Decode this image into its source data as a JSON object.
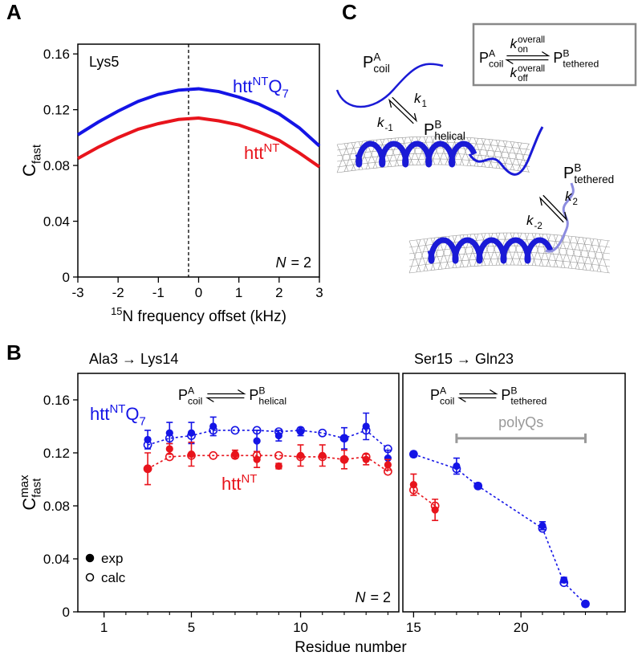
{
  "panel_labels": [
    "A",
    "B",
    "C"
  ],
  "chart_data": [
    {
      "type": "line",
      "ylabel": [
        {
          "text": "C"
        },
        {
          "sub": "fast"
        }
      ],
      "xlabel": [
        {
          "sup": "15"
        },
        {
          "text": "N frequency offset (kHz)"
        }
      ],
      "xlim": [
        -3,
        3
      ],
      "xticks": [
        -3,
        -2,
        -1,
        0,
        1,
        2,
        3
      ],
      "ylim": [
        0,
        0.167
      ],
      "yticks": [
        0,
        0.04,
        0.08,
        0.12,
        0.16
      ],
      "vline": -0.25,
      "annotations": [
        "Lys5"
      ],
      "note": [
        {
          "italic": "N"
        },
        {
          "text": " = 2"
        }
      ],
      "series": [
        {
          "name_parts": [
            {
              "text": "htt"
            },
            {
              "sup": "NT"
            },
            {
              "text": "Q"
            },
            {
              "sub": "7"
            }
          ],
          "color": "#1414e6",
          "x": [
            -3,
            -2.5,
            -2,
            -1.5,
            -1,
            -0.5,
            0,
            0.5,
            1,
            1.5,
            2,
            2.5,
            3
          ],
          "values": [
            0.102,
            0.111,
            0.119,
            0.126,
            0.131,
            0.134,
            0.135,
            0.133,
            0.129,
            0.124,
            0.117,
            0.107,
            0.094
          ]
        },
        {
          "name_parts": [
            {
              "text": "htt"
            },
            {
              "sup": "NT"
            }
          ],
          "color": "#e8141c",
          "x": [
            -3,
            -2.5,
            -2,
            -1.5,
            -1,
            -0.5,
            0,
            0.5,
            1,
            1.5,
            2,
            2.5,
            3
          ],
          "values": [
            0.085,
            0.093,
            0.1,
            0.106,
            0.11,
            0.113,
            0.114,
            0.112,
            0.109,
            0.104,
            0.098,
            0.089,
            0.079
          ]
        }
      ]
    },
    {
      "type": "scatter",
      "title": "Ala3 → Lys14",
      "scheme": [
        [
          {
            "text": "P"
          },
          {
            "sup": "A",
            "sub": "coil"
          }
        ],
        [
          {
            "text": "P"
          },
          {
            "sup": "B",
            "sub": "helical"
          }
        ]
      ],
      "ylabel": [
        {
          "text": "C"
        },
        {
          "sup": "max",
          "sub": "fast"
        }
      ],
      "xlabel": "Residue number",
      "xlim": [
        -0.2,
        14.5
      ],
      "xticks": [
        1,
        5,
        10
      ],
      "xticks_minor": [
        2,
        3,
        4,
        6,
        7,
        8,
        9,
        11,
        12,
        13,
        14
      ],
      "ylim": [
        0,
        0.18
      ],
      "yticks": [
        0,
        0.04,
        0.08,
        0.12,
        0.16
      ],
      "legend": [
        {
          "label": "exp",
          "filled": true
        },
        {
          "label": "calc",
          "filled": false
        }
      ],
      "note": [
        {
          "italic": "N"
        },
        {
          "text": " = 2"
        }
      ],
      "series": [
        {
          "name_parts": [
            {
              "text": "htt"
            },
            {
              "sup": "NT"
            },
            {
              "text": "Q"
            },
            {
              "sub": "7"
            }
          ],
          "color": "#1414e6",
          "x": [
            3,
            4,
            5,
            6,
            7,
            8,
            9,
            10,
            11,
            12,
            13,
            14
          ],
          "exp": [
            0.13,
            0.135,
            0.135,
            0.14,
            null,
            0.129,
            0.133,
            0.136,
            null,
            0.131,
            0.14,
            0.116
          ],
          "exp_error": [
            0.007,
            0.008,
            0.008,
            0.007,
            null,
            0.008,
            0.004,
            0.003,
            null,
            0.008,
            0.01,
            0.006
          ],
          "calc": [
            0.126,
            0.131,
            0.133,
            0.137,
            0.137,
            0.137,
            0.136,
            0.137,
            0.135,
            0.131,
            0.137,
            0.123
          ]
        },
        {
          "name_parts": [
            {
              "text": "htt"
            },
            {
              "sup": "NT"
            }
          ],
          "color": "#e8141c",
          "x": [
            3,
            4,
            5,
            6,
            7,
            8,
            9,
            10,
            11,
            12,
            13,
            14
          ],
          "exp": [
            0.108,
            0.123,
            0.119,
            null,
            0.119,
            0.115,
            0.11,
            0.118,
            0.118,
            0.115,
            0.115,
            0.111
          ],
          "exp_error": [
            0.012,
            0.004,
            0.009,
            null,
            0.003,
            0.006,
            0.002,
            0.008,
            0.008,
            0.007,
            0.004,
            0.004
          ],
          "calc": [
            0.108,
            0.117,
            0.118,
            0.118,
            0.118,
            0.118,
            0.118,
            0.117,
            0.117,
            0.115,
            0.117,
            0.106
          ]
        }
      ]
    },
    {
      "type": "scatter",
      "title": "Ser15 → Gln23",
      "scheme": [
        [
          {
            "text": "P"
          },
          {
            "sup": "A",
            "sub": "coil"
          }
        ],
        [
          {
            "text": "P"
          },
          {
            "sup": "B",
            "sub": "tethered"
          }
        ]
      ],
      "xlim": [
        14.5,
        24.85
      ],
      "xticks": [
        15,
        20
      ],
      "xticks_minor": [
        16,
        17,
        18,
        19,
        21,
        22,
        23,
        24
      ],
      "ylim": [
        0,
        0.18
      ],
      "bracket": {
        "label": "polyQs",
        "range": [
          17,
          23
        ],
        "y": 0.131
      },
      "series": [
        {
          "color": "#1414e6",
          "x": [
            15,
            17,
            18,
            21,
            22,
            23
          ],
          "exp": [
            0.119,
            0.11,
            0.095,
            0.065,
            0.024,
            0.006
          ],
          "exp_error": [
            0.002,
            0.006,
            0.002,
            0.003,
            0.002,
            0.002
          ],
          "calc": [
            0.119,
            0.108,
            0.095,
            0.063,
            0.022,
            0.006
          ]
        },
        {
          "color": "#e8141c",
          "x": [
            15,
            16
          ],
          "exp": [
            0.096,
            0.077
          ],
          "exp_error": [
            0.008,
            0.008
          ],
          "calc": [
            0.092,
            0.08
          ]
        }
      ]
    }
  ],
  "diagram": {
    "box": {
      "left": [
        {
          "text": "P"
        },
        {
          "sup": "A",
          "sub": "coil"
        }
      ],
      "k_on": [
        {
          "italic": "k"
        },
        {
          "sup": "overall",
          "sub": "on"
        }
      ],
      "k_off": [
        {
          "italic": "k"
        },
        {
          "sup": "overall",
          "sub": "off"
        }
      ],
      "right": [
        {
          "text": "P"
        },
        {
          "sup": "B",
          "sub": "tethered"
        }
      ]
    },
    "species": [
      [
        {
          "text": "P"
        },
        {
          "sup": "A",
          "sub": "coil"
        }
      ],
      [
        {
          "text": "P"
        },
        {
          "sup": "B",
          "sub": "helical"
        }
      ],
      [
        {
          "text": "P"
        },
        {
          "sup": "B",
          "sub": "tethered"
        }
      ]
    ],
    "rates": [
      [
        {
          "italic": "k"
        },
        {
          "sub": "1"
        }
      ],
      [
        {
          "italic": "k"
        },
        {
          "sub": "-1"
        }
      ],
      [
        {
          "italic": "k"
        },
        {
          "sub": "2"
        }
      ],
      [
        {
          "italic": "k"
        },
        {
          "sub": "-2"
        }
      ]
    ]
  }
}
